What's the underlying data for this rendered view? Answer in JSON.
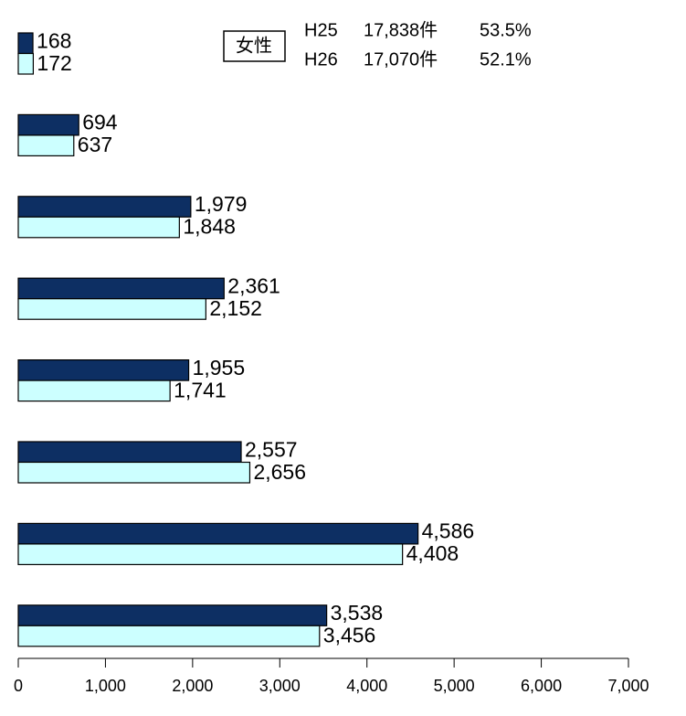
{
  "chart_data": {
    "type": "bar",
    "orientation": "horizontal",
    "title": "女性",
    "categories": [
      null,
      null,
      null,
      null,
      null,
      null,
      null,
      null
    ],
    "series": [
      {
        "name": "H25",
        "total_label": "17,838件",
        "share_label": "53.5%",
        "color": "#0d2f63",
        "values": [
          168,
          694,
          1979,
          2361,
          1955,
          2557,
          4586,
          3538
        ],
        "value_labels": [
          "168",
          "694",
          "1,979",
          "2,361",
          "1,955",
          "2,557",
          "4,586",
          "3,538"
        ]
      },
      {
        "name": "H26",
        "total_label": "17,070件",
        "share_label": "52.1%",
        "color": "#ccffff",
        "values": [
          172,
          637,
          1848,
          2152,
          1741,
          2656,
          4408,
          3456
        ],
        "value_labels": [
          "172",
          "637",
          "1,848",
          "2,152",
          "1,741",
          "2,656",
          "4,408",
          "3,456"
        ]
      }
    ],
    "xlim": [
      0,
      7000
    ],
    "xticks": [
      0,
      {
        "value": 1000,
        "label": "1,000"
      },
      {
        "value": 2000,
        "label": "2,000"
      },
      {
        "value": 3000,
        "label": "3,000"
      },
      {
        "value": 4000,
        "label": "4,000"
      },
      {
        "value": 5000,
        "label": "5,000"
      },
      {
        "value": 6000,
        "label": "6,000"
      },
      {
        "value": 7000,
        "label": "7,000"
      }
    ]
  }
}
